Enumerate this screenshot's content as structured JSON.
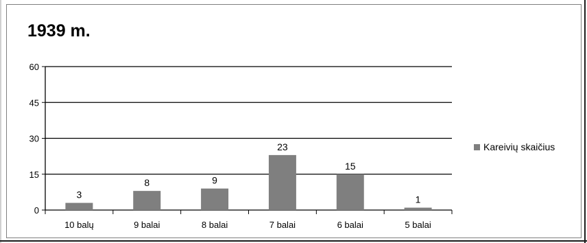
{
  "chart_data": {
    "type": "bar",
    "title": "1939 m.",
    "categories": [
      "10 balų",
      "9 balai",
      "8 balai",
      "7 balai",
      "6 balai",
      "5 balai"
    ],
    "series": [
      {
        "name": "Kareivių skaičius",
        "values": [
          3,
          8,
          9,
          23,
          15,
          1
        ]
      }
    ],
    "ylim": [
      0,
      60
    ],
    "yticks": [
      0,
      15,
      30,
      45,
      60
    ],
    "xlabel": "",
    "ylabel": "",
    "grid": true,
    "legend_position": "right",
    "bar_color": "#7f7f7f"
  }
}
